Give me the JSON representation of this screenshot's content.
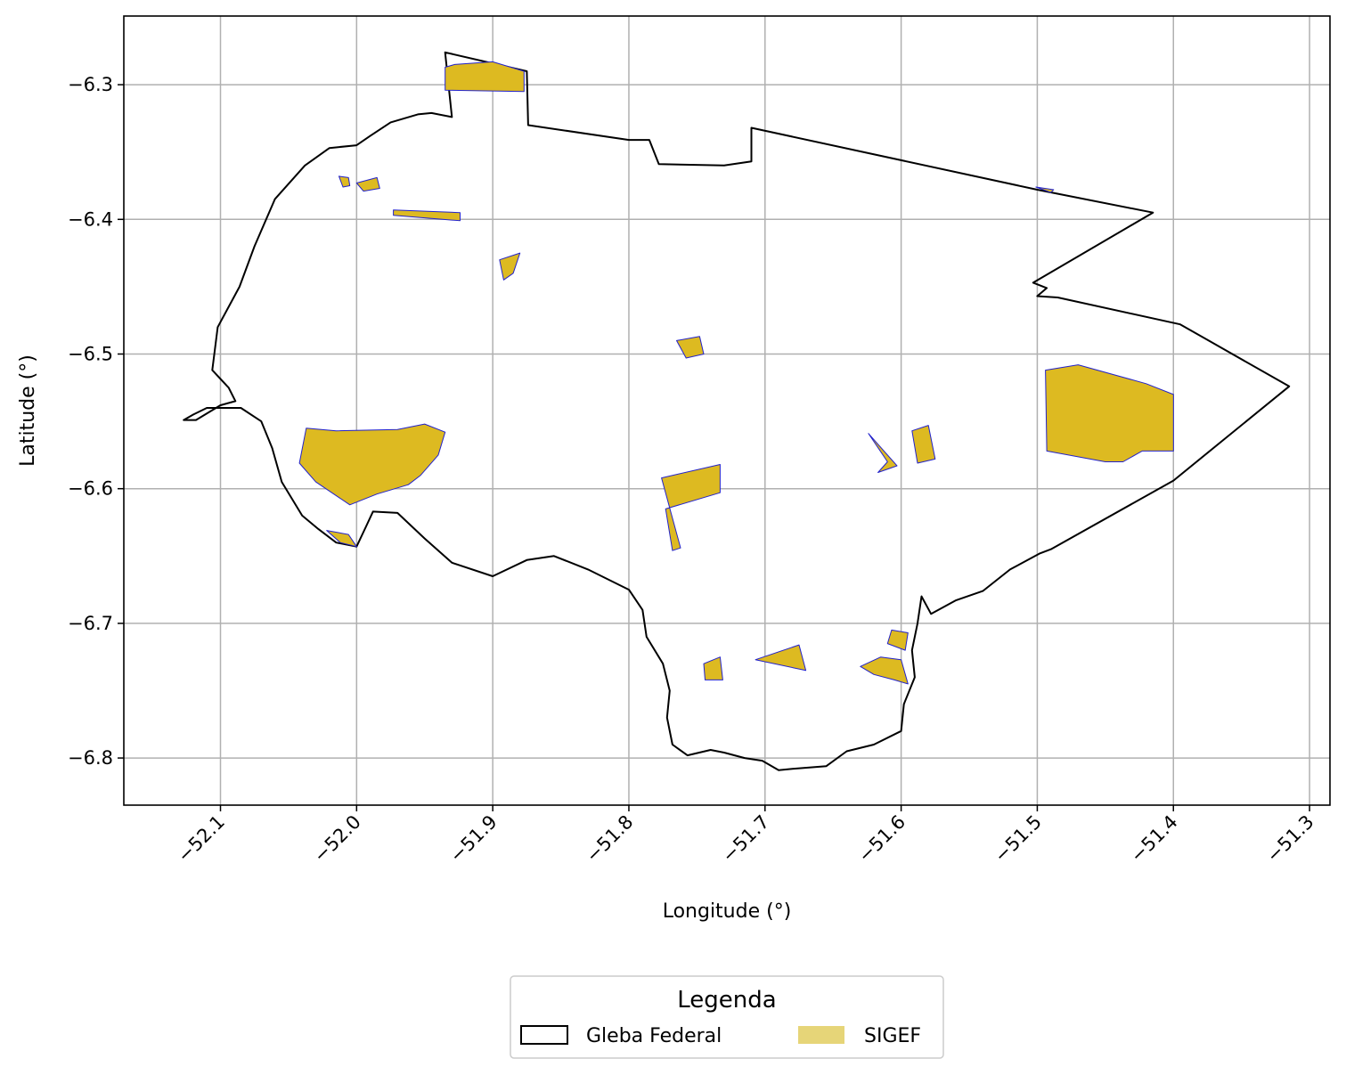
{
  "chart_data": {
    "type": "map",
    "xlabel": "Longitude (°)",
    "ylabel": "Latitude (°)",
    "xlim": [
      -52.171,
      -51.285
    ],
    "ylim": [
      -6.835,
      -6.249
    ],
    "grid": true,
    "x_ticks": [
      -52.1,
      -52.0,
      -51.9,
      -51.8,
      -51.7,
      -51.6,
      -51.5,
      -51.4,
      -51.3
    ],
    "x_tick_labels": [
      "−52.1",
      "−52.0",
      "−51.9",
      "−51.8",
      "−51.7",
      "−51.6",
      "−51.5",
      "−51.4",
      "−51.3"
    ],
    "y_ticks": [
      -6.3,
      -6.4,
      -6.5,
      -6.6,
      -6.7,
      -6.8
    ],
    "y_tick_labels": [
      "−6.3",
      "−6.4",
      "−6.5",
      "−6.6",
      "−6.7",
      "−6.8"
    ],
    "legend": {
      "title": "Legenda",
      "placement": "bottom-center, outside",
      "entries": [
        {
          "label": "Gleba Federal",
          "style": "outline",
          "edge": "#000000",
          "face": "none"
        },
        {
          "label": "SIGEF",
          "style": "fill",
          "face": "#e6d578",
          "edge": "none"
        }
      ]
    },
    "colors": {
      "gleba_edge": "#000000",
      "sigef_fill": "#ddba21",
      "sigef_edge": "#2222cc",
      "grid": "#b0b0b0"
    },
    "series": [
      {
        "name": "Gleba Federal",
        "polygons": [
          [
            [
              -51.935,
              -6.276
            ],
            [
              -51.875,
              -6.29
            ],
            [
              -51.874,
              -6.33
            ],
            [
              -51.8,
              -6.341
            ],
            [
              -51.785,
              -6.341
            ],
            [
              -51.778,
              -6.359
            ],
            [
              -51.73,
              -6.36
            ],
            [
              -51.71,
              -6.357
            ],
            [
              -51.71,
              -6.332
            ],
            [
              -51.5,
              -6.378
            ],
            [
              -51.415,
              -6.395
            ],
            [
              -51.503,
              -6.447
            ],
            [
              -51.493,
              -6.451
            ],
            [
              -51.5,
              -6.457
            ],
            [
              -51.485,
              -6.458
            ],
            [
              -51.395,
              -6.478
            ],
            [
              -51.315,
              -6.524
            ],
            [
              -51.4,
              -6.594
            ],
            [
              -51.49,
              -6.645
            ],
            [
              -51.498,
              -6.648
            ],
            [
              -51.52,
              -6.66
            ],
            [
              -51.54,
              -6.676
            ],
            [
              -51.56,
              -6.683
            ],
            [
              -51.578,
              -6.693
            ],
            [
              -51.585,
              -6.68
            ],
            [
              -51.588,
              -6.7
            ],
            [
              -51.592,
              -6.72
            ],
            [
              -51.59,
              -6.74
            ],
            [
              -51.598,
              -6.76
            ],
            [
              -51.6,
              -6.78
            ],
            [
              -51.62,
              -6.79
            ],
            [
              -51.64,
              -6.795
            ],
            [
              -51.655,
              -6.806
            ],
            [
              -51.68,
              -6.808
            ],
            [
              -51.69,
              -6.809
            ],
            [
              -51.702,
              -6.802
            ],
            [
              -51.715,
              -6.8
            ],
            [
              -51.73,
              -6.796
            ],
            [
              -51.74,
              -6.794
            ],
            [
              -51.757,
              -6.798
            ],
            [
              -51.768,
              -6.79
            ],
            [
              -51.772,
              -6.77
            ],
            [
              -51.77,
              -6.75
            ],
            [
              -51.775,
              -6.73
            ],
            [
              -51.787,
              -6.71
            ],
            [
              -51.79,
              -6.69
            ],
            [
              -51.8,
              -6.675
            ],
            [
              -51.83,
              -6.66
            ],
            [
              -51.855,
              -6.65
            ],
            [
              -51.875,
              -6.653
            ],
            [
              -51.9,
              -6.665
            ],
            [
              -51.93,
              -6.655
            ],
            [
              -51.95,
              -6.637
            ],
            [
              -51.97,
              -6.618
            ],
            [
              -51.988,
              -6.617
            ],
            [
              -51.993,
              -6.628
            ],
            [
              -52.0,
              -6.643
            ],
            [
              -52.015,
              -6.64
            ],
            [
              -52.028,
              -6.63
            ],
            [
              -52.04,
              -6.62
            ],
            [
              -52.055,
              -6.595
            ],
            [
              -52.062,
              -6.57
            ],
            [
              -52.07,
              -6.55
            ],
            [
              -52.085,
              -6.54
            ],
            [
              -52.11,
              -6.54
            ],
            [
              -52.12,
              -6.545
            ],
            [
              -52.127,
              -6.549
            ],
            [
              -52.118,
              -6.549
            ],
            [
              -52.1,
              -6.538
            ],
            [
              -52.089,
              -6.535
            ],
            [
              -52.094,
              -6.525
            ],
            [
              -52.106,
              -6.512
            ],
            [
              -52.102,
              -6.48
            ],
            [
              -52.086,
              -6.45
            ],
            [
              -52.075,
              -6.42
            ],
            [
              -52.06,
              -6.385
            ],
            [
              -52.038,
              -6.36
            ],
            [
              -52.02,
              -6.347
            ],
            [
              -52.0,
              -6.345
            ],
            [
              -51.99,
              -6.338
            ],
            [
              -51.975,
              -6.328
            ],
            [
              -51.955,
              -6.322
            ],
            [
              -51.945,
              -6.321
            ],
            [
              -51.93,
              -6.324
            ],
            [
              -51.935,
              -6.276
            ]
          ]
        ]
      },
      {
        "name": "SIGEF",
        "polygons": [
          [
            [
              -51.935,
              -6.287
            ],
            [
              -51.928,
              -6.285
            ],
            [
              -51.9,
              -6.283
            ],
            [
              -51.877,
              -6.29
            ],
            [
              -51.877,
              -6.305
            ],
            [
              -51.935,
              -6.304
            ]
          ],
          [
            [
              -52.013,
              -6.368
            ],
            [
              -52.006,
              -6.369
            ],
            [
              -52.005,
              -6.375
            ],
            [
              -52.01,
              -6.376
            ]
          ],
          [
            [
              -52.0,
              -6.373
            ],
            [
              -51.985,
              -6.369
            ],
            [
              -51.983,
              -6.377
            ],
            [
              -51.995,
              -6.379
            ]
          ],
          [
            [
              -51.973,
              -6.393
            ],
            [
              -51.924,
              -6.395
            ],
            [
              -51.924,
              -6.401
            ],
            [
              -51.973,
              -6.397
            ]
          ],
          [
            [
              -51.895,
              -6.43
            ],
            [
              -51.88,
              -6.425
            ],
            [
              -51.885,
              -6.44
            ],
            [
              -51.892,
              -6.445
            ]
          ],
          [
            [
              -51.765,
              -6.49
            ],
            [
              -51.748,
              -6.487
            ],
            [
              -51.745,
              -6.5
            ],
            [
              -51.758,
              -6.503
            ]
          ],
          [
            [
              -51.494,
              -6.512
            ],
            [
              -51.47,
              -6.508
            ],
            [
              -51.42,
              -6.522
            ],
            [
              -51.4,
              -6.53
            ],
            [
              -51.4,
              -6.572
            ],
            [
              -51.423,
              -6.572
            ],
            [
              -51.437,
              -6.58
            ],
            [
              -51.45,
              -6.58
            ],
            [
              -51.493,
              -6.572
            ]
          ],
          [
            [
              -52.037,
              -6.555
            ],
            [
              -52.015,
              -6.557
            ],
            [
              -51.97,
              -6.556
            ],
            [
              -51.95,
              -6.552
            ],
            [
              -51.935,
              -6.558
            ],
            [
              -51.94,
              -6.575
            ],
            [
              -51.953,
              -6.59
            ],
            [
              -51.962,
              -6.597
            ],
            [
              -51.985,
              -6.604
            ],
            [
              -52.005,
              -6.612
            ],
            [
              -52.03,
              -6.595
            ],
            [
              -52.042,
              -6.581
            ]
          ],
          [
            [
              -52.022,
              -6.631
            ],
            [
              -52.006,
              -6.634
            ],
            [
              -52.0,
              -6.643
            ],
            [
              -52.012,
              -6.64
            ]
          ],
          [
            [
              -51.776,
              -6.592
            ],
            [
              -51.733,
              -6.582
            ],
            [
              -51.733,
              -6.603
            ],
            [
              -51.773,
              -6.615
            ],
            [
              -51.768,
              -6.646
            ],
            [
              -51.762,
              -6.644
            ]
          ],
          [
            [
              -51.624,
              -6.559
            ],
            [
              -51.61,
              -6.58
            ],
            [
              -51.617,
              -6.588
            ],
            [
              -51.603,
              -6.583
            ]
          ],
          [
            [
              -51.592,
              -6.557
            ],
            [
              -51.58,
              -6.553
            ],
            [
              -51.575,
              -6.578
            ],
            [
              -51.588,
              -6.581
            ]
          ],
          [
            [
              -51.745,
              -6.73
            ],
            [
              -51.733,
              -6.725
            ],
            [
              -51.731,
              -6.742
            ],
            [
              -51.744,
              -6.742
            ]
          ],
          [
            [
              -51.707,
              -6.727
            ],
            [
              -51.675,
              -6.716
            ],
            [
              -51.67,
              -6.735
            ]
          ],
          [
            [
              -51.63,
              -6.732
            ],
            [
              -51.615,
              -6.725
            ],
            [
              -51.6,
              -6.727
            ],
            [
              -51.595,
              -6.745
            ],
            [
              -51.605,
              -6.742
            ],
            [
              -51.62,
              -6.738
            ]
          ],
          [
            [
              -51.607,
              -6.705
            ],
            [
              -51.595,
              -6.707
            ],
            [
              -51.597,
              -6.72
            ],
            [
              -51.61,
              -6.715
            ]
          ],
          [
            [
              -51.501,
              -6.376
            ],
            [
              -51.488,
              -6.378
            ],
            [
              -51.49,
              -6.38
            ]
          ]
        ]
      }
    ]
  }
}
